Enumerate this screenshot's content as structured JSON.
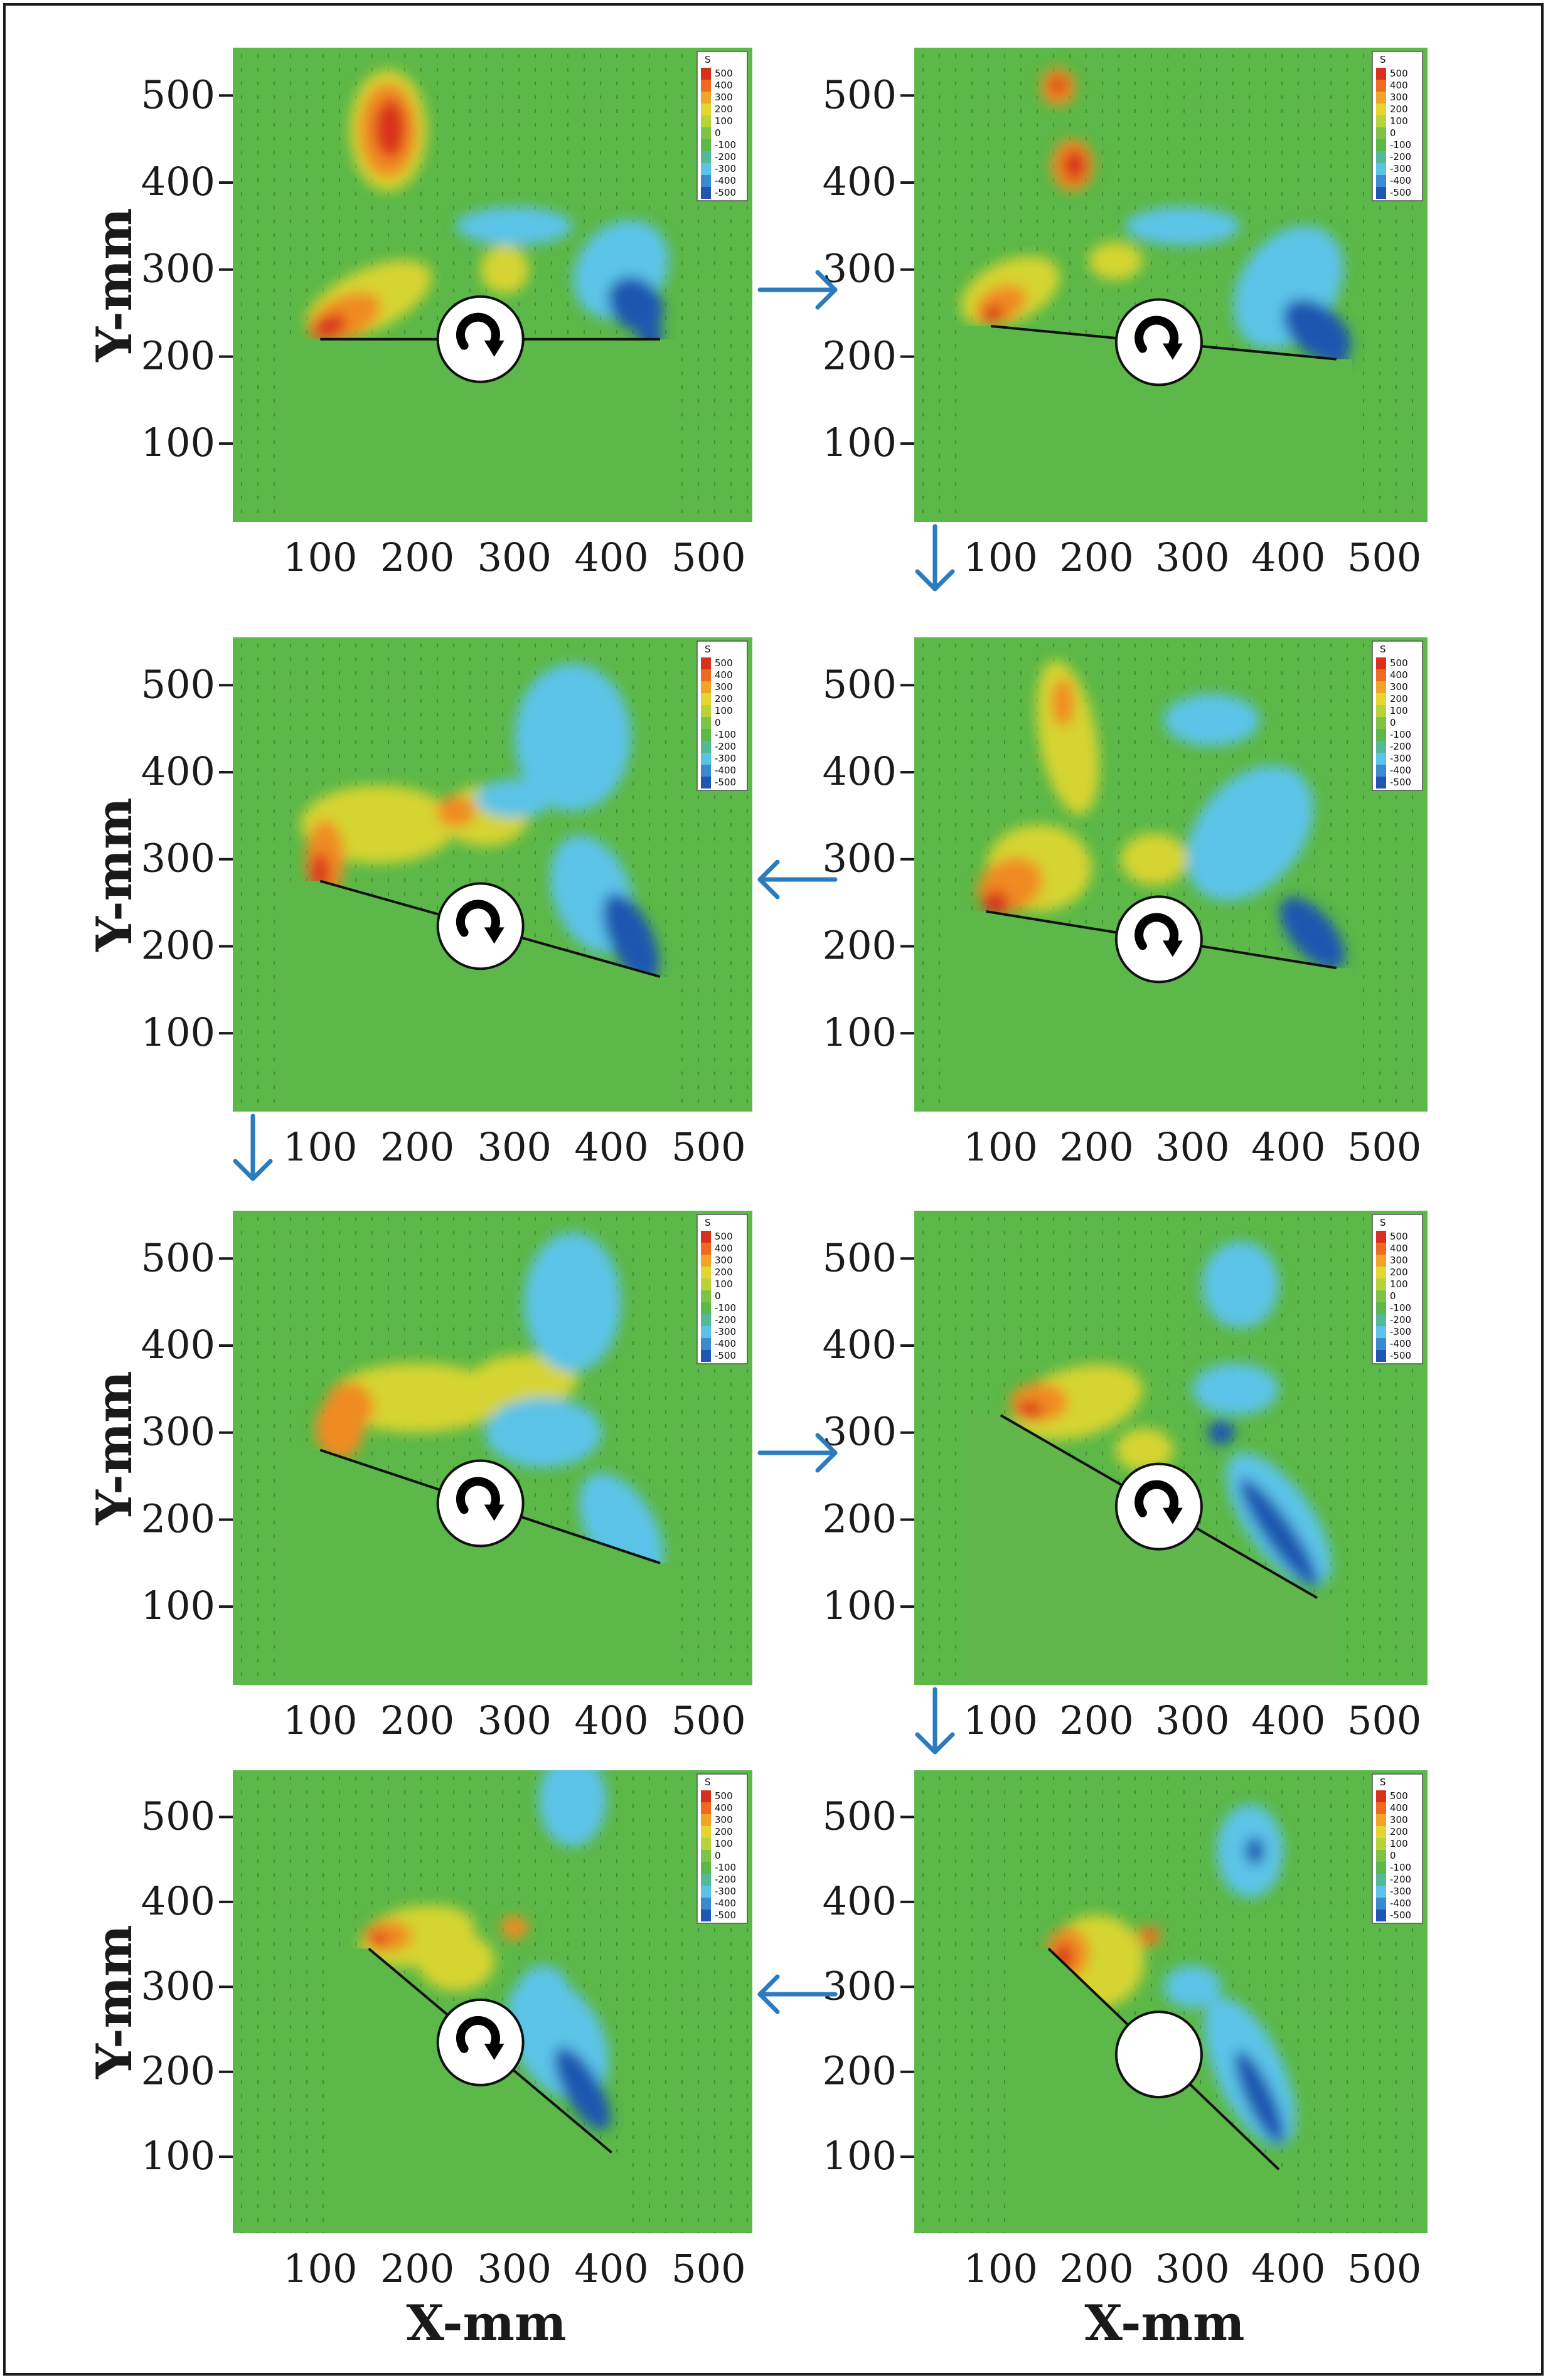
{
  "figure": {
    "x_axis_title": "X-mm",
    "y_axis_title": "Y-mm"
  },
  "chart_data": [
    {
      "type": "heatmap",
      "panel": 1,
      "xlim": [
        10,
        545
      ],
      "ylim": [
        10,
        555
      ],
      "x_ticks": [
        100,
        200,
        300,
        400,
        500
      ],
      "y_ticks": [
        100,
        200,
        300,
        400,
        500
      ],
      "legend_title": "S",
      "legend_levels": [
        500,
        400,
        300,
        200,
        100,
        0,
        -100,
        -200,
        -300,
        -400,
        -500
      ],
      "colors": {
        "background": "#5cb848",
        "red": "#d9301e",
        "orange": "#f08b23",
        "yellow": "#d6d430",
        "cyan": "#5bc3e8",
        "blue": "#1f56b0"
      },
      "body_line": [
        [
          100,
          220
        ],
        [
          450,
          220
        ]
      ],
      "rotation_marker": "clockwise-arrow-icon"
    },
    {
      "type": "heatmap",
      "panel": 2,
      "xlim": [
        10,
        545
      ],
      "ylim": [
        10,
        555
      ],
      "x_ticks": [
        100,
        200,
        300,
        400,
        500
      ],
      "y_ticks": [
        100,
        200,
        300,
        400,
        500
      ],
      "legend_title": "S",
      "legend_levels": [
        500,
        400,
        300,
        200,
        100,
        0,
        -100,
        -200,
        -300,
        -400,
        -500
      ],
      "body_line": [
        [
          90,
          235
        ],
        [
          450,
          197
        ]
      ],
      "rotation_marker": "clockwise-arrow-icon"
    },
    {
      "type": "heatmap",
      "panel": 3,
      "xlim": [
        10,
        545
      ],
      "ylim": [
        10,
        555
      ],
      "x_ticks": [
        100,
        200,
        300,
        400,
        500
      ],
      "y_ticks": [
        100,
        200,
        300,
        400,
        500
      ],
      "legend_title": "S",
      "legend_levels": [
        500,
        400,
        300,
        200,
        100,
        0,
        -100,
        -200,
        -300,
        -400,
        -500
      ],
      "body_line": [
        [
          100,
          275
        ],
        [
          450,
          165
        ]
      ],
      "rotation_marker": "clockwise-arrow-icon"
    },
    {
      "type": "heatmap",
      "panel": 4,
      "xlim": [
        10,
        545
      ],
      "ylim": [
        10,
        555
      ],
      "x_ticks": [
        100,
        200,
        300,
        400,
        500
      ],
      "y_ticks": [
        100,
        200,
        300,
        400,
        500
      ],
      "legend_title": "S",
      "legend_levels": [
        500,
        400,
        300,
        200,
        100,
        0,
        -100,
        -200,
        -300,
        -400,
        -500
      ],
      "body_line": [
        [
          85,
          240
        ],
        [
          450,
          175
        ]
      ],
      "rotation_marker": "clockwise-arrow-icon"
    },
    {
      "type": "heatmap",
      "panel": 5,
      "xlim": [
        10,
        545
      ],
      "ylim": [
        10,
        555
      ],
      "x_ticks": [
        100,
        200,
        300,
        400,
        500
      ],
      "y_ticks": [
        100,
        200,
        300,
        400,
        500
      ],
      "legend_title": "S",
      "legend_levels": [
        500,
        400,
        300,
        200,
        100,
        0,
        -100,
        -200,
        -300,
        -400,
        -500
      ],
      "body_line": [
        [
          100,
          280
        ],
        [
          450,
          150
        ]
      ],
      "rotation_marker": "clockwise-arrow-icon"
    },
    {
      "type": "heatmap",
      "panel": 6,
      "xlim": [
        10,
        545
      ],
      "ylim": [
        10,
        555
      ],
      "x_ticks": [
        100,
        200,
        300,
        400,
        500
      ],
      "y_ticks": [
        100,
        200,
        300,
        400,
        500
      ],
      "legend_title": "S",
      "legend_levels": [
        500,
        400,
        300,
        200,
        100,
        0,
        -100,
        -200,
        -300,
        -400,
        -500
      ],
      "body_line": [
        [
          100,
          320
        ],
        [
          430,
          110
        ]
      ],
      "rotation_marker": "clockwise-arrow-icon"
    },
    {
      "type": "heatmap",
      "panel": 7,
      "xlim": [
        10,
        545
      ],
      "ylim": [
        10,
        555
      ],
      "x_ticks": [
        100,
        200,
        300,
        400,
        500
      ],
      "y_ticks": [
        100,
        200,
        300,
        400,
        500
      ],
      "legend_title": "S",
      "legend_levels": [
        500,
        400,
        300,
        200,
        100,
        0,
        -100,
        -200,
        -300,
        -400,
        -500
      ],
      "body_line": [
        [
          150,
          345
        ],
        [
          400,
          105
        ]
      ],
      "rotation_marker": "clockwise-arrow-icon"
    },
    {
      "type": "heatmap",
      "panel": 8,
      "xlim": [
        10,
        545
      ],
      "ylim": [
        10,
        555
      ],
      "x_ticks": [
        100,
        200,
        300,
        400,
        500
      ],
      "y_ticks": [
        100,
        200,
        300,
        400,
        500
      ],
      "legend_title": "S",
      "legend_levels": [
        500,
        400,
        300,
        200,
        100,
        0,
        -100,
        -200,
        -300,
        -400,
        -500
      ],
      "body_line": [
        [
          150,
          345
        ],
        [
          390,
          85
        ]
      ],
      "rotation_marker": "none"
    }
  ]
}
